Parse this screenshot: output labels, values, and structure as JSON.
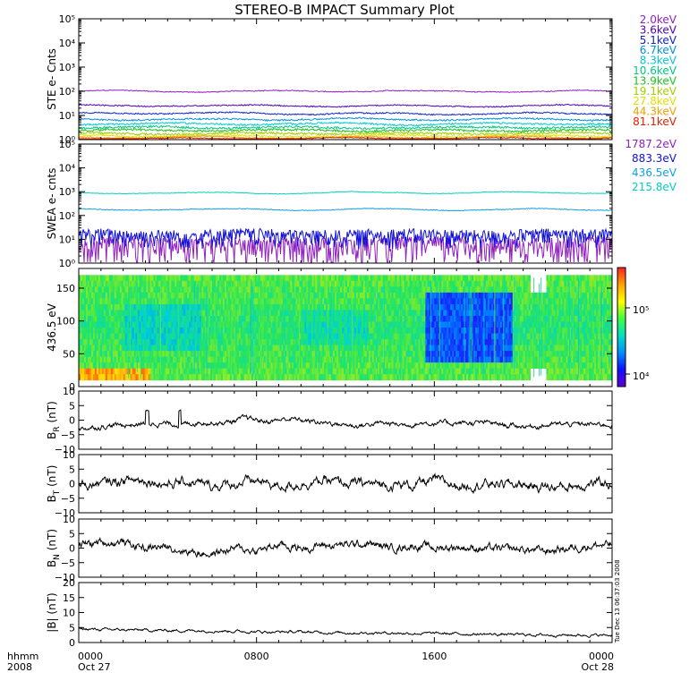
{
  "title": "STEREO-B IMPACT Summary Plot",
  "time_axis": {
    "row_label_1": "hhmm",
    "row_label_2": "2008",
    "ticks": [
      {
        "t": 0,
        "label": "0000",
        "date": "Oct 27"
      },
      {
        "t": 8,
        "label": "0800",
        "date": ""
      },
      {
        "t": 16,
        "label": "1600",
        "date": ""
      },
      {
        "t": 24,
        "label": "0000",
        "date": "Oct 28"
      }
    ]
  },
  "timestamp": "Tue Dec 13 06:37:03 2008",
  "colorbar": {
    "labels": [
      "10⁵",
      "10⁴"
    ],
    "colors": [
      "#ff2020",
      "#ffa000",
      "#ffff00",
      "#40ff40",
      "#00e0c0",
      "#0090ff",
      "#1010ff",
      "#6000d0"
    ]
  },
  "chart_data": [
    {
      "type": "line",
      "panel": "ste",
      "ylabel": "STE e- Cnts",
      "yscale": "log",
      "ylim": [
        1,
        100000
      ],
      "ytick_labels": [
        "10⁰",
        "10¹",
        "10²",
        "10³",
        "10⁴",
        "10⁵"
      ],
      "series": [
        {
          "name": "2.0keV",
          "color": "#9020c0",
          "level": 100,
          "noise": 0.04
        },
        {
          "name": "3.6keV",
          "color": "#5000b8",
          "level": 25,
          "noise": 0.05
        },
        {
          "name": "5.1keV",
          "color": "#1020d0",
          "level": 12,
          "noise": 0.06
        },
        {
          "name": "6.7keV",
          "color": "#0090e0",
          "level": 7,
          "noise": 0.07
        },
        {
          "name": "8.3keV",
          "color": "#00c8d8",
          "level": 4.5,
          "noise": 0.08
        },
        {
          "name": "10.6keV",
          "color": "#00c880",
          "level": 3.2,
          "noise": 0.1
        },
        {
          "name": "13.9keV",
          "color": "#20c020",
          "level": 2.4,
          "noise": 0.1
        },
        {
          "name": "19.1keV",
          "color": "#a0d000",
          "level": 1.8,
          "noise": 0.1
        },
        {
          "name": "27.8keV",
          "color": "#e0e000",
          "level": 1.45,
          "noise": 0.08
        },
        {
          "name": "44.3keV",
          "color": "#f0a000",
          "level": 1.25,
          "noise": 0.06
        },
        {
          "name": "81.1keV",
          "color": "#e02000",
          "level": 1.1,
          "noise": 0.04
        }
      ]
    },
    {
      "type": "line",
      "panel": "swea",
      "ylabel": "SWEA e- cnts",
      "yscale": "log",
      "ylim": [
        1,
        100000
      ],
      "ytick_labels": [
        "10⁰",
        "10¹",
        "10²",
        "10³",
        "10⁴",
        "10⁵"
      ],
      "series": [
        {
          "name": "1787.2eV",
          "color": "#9020c0",
          "level": 6,
          "noise": 0.35
        },
        {
          "name": "883.3eV",
          "color": "#1010d8",
          "level": 15,
          "noise": 0.25
        },
        {
          "name": "436.5eV",
          "color": "#10a0e0",
          "level": 180,
          "noise": 0.03
        },
        {
          "name": "215.8eV",
          "color": "#00d0c0",
          "level": 900,
          "noise": 0.025
        }
      ]
    },
    {
      "type": "heatmap",
      "panel": "pad",
      "ylabel": "436.5 eV",
      "ylim": [
        0,
        180
      ],
      "ytick_labels": [
        "0",
        "50",
        "100",
        "150"
      ],
      "ytick_values": [
        0,
        50,
        100,
        150
      ]
    },
    {
      "type": "line",
      "panel": "br",
      "ylabel": "B_R (nT)",
      "ylabel_main": "B",
      "ylabel_sub": "R",
      "ylabel_unit": " (nT)",
      "ylim": [
        -10,
        10
      ],
      "ytick_labels": [
        "−10",
        "−5",
        "0",
        "5",
        "10"
      ],
      "ytick_values": [
        -10,
        -5,
        0,
        5,
        10
      ],
      "anchors": [
        [
          0,
          -3
        ],
        [
          1.2,
          -2
        ],
        [
          2.5,
          -1.5
        ],
        [
          3.5,
          -1
        ],
        [
          4.5,
          -1.5
        ],
        [
          5.5,
          -0.5
        ],
        [
          6.5,
          -1
        ],
        [
          7.5,
          0.5
        ],
        [
          8.5,
          -0.5
        ],
        [
          9.5,
          0.5
        ],
        [
          10.5,
          -0.5
        ],
        [
          11.5,
          -1
        ],
        [
          12.5,
          -2
        ],
        [
          13.5,
          -1
        ],
        [
          14.5,
          -1.5
        ],
        [
          15.5,
          -1
        ],
        [
          16.5,
          -1
        ],
        [
          17.5,
          -1
        ],
        [
          18.5,
          -1
        ],
        [
          19.5,
          -2
        ],
        [
          20.5,
          -2
        ],
        [
          21.5,
          -1.5
        ],
        [
          22.5,
          -1.5
        ],
        [
          23.5,
          -1.5
        ],
        [
          24,
          -1.5
        ]
      ],
      "noise": 0.7
    },
    {
      "type": "line",
      "panel": "bt",
      "ylabel": "B_T (nT)",
      "ylabel_main": "B",
      "ylabel_sub": "T",
      "ylabel_unit": " (nT)",
      "ylim": [
        -10,
        10
      ],
      "ytick_labels": [
        "−10",
        "−5",
        "0",
        "5",
        "10"
      ],
      "ytick_values": [
        -10,
        -5,
        0,
        5,
        10
      ],
      "anchors": [
        [
          0,
          -0.5
        ],
        [
          1,
          0
        ],
        [
          2,
          1
        ],
        [
          3,
          1.5
        ],
        [
          4,
          0
        ],
        [
          5,
          0.5
        ],
        [
          6,
          -1
        ],
        [
          7,
          0
        ],
        [
          8,
          1
        ],
        [
          9,
          -1
        ],
        [
          10,
          0
        ],
        [
          11,
          1
        ],
        [
          12,
          0
        ],
        [
          13,
          0
        ],
        [
          14,
          -0.5
        ],
        [
          15,
          -0.5
        ],
        [
          16,
          1
        ],
        [
          17,
          -0.5
        ],
        [
          18,
          0
        ],
        [
          19,
          0
        ],
        [
          20,
          -0.5
        ],
        [
          21,
          -1
        ],
        [
          22,
          -1
        ],
        [
          23,
          0
        ],
        [
          24,
          0
        ]
      ],
      "noise": 1.3
    },
    {
      "type": "line",
      "panel": "bn",
      "ylabel": "B_N (nT)",
      "ylabel_main": "B",
      "ylabel_sub": "N",
      "ylabel_unit": " (nT)",
      "ylim": [
        -10,
        10
      ],
      "ytick_labels": [
        "−10",
        "−5",
        "0",
        "5",
        "10"
      ],
      "ytick_values": [
        -10,
        -5,
        0,
        5,
        10
      ],
      "anchors": [
        [
          0,
          1
        ],
        [
          1,
          2
        ],
        [
          2,
          2
        ],
        [
          3,
          0
        ],
        [
          4,
          0.5
        ],
        [
          5,
          -1
        ],
        [
          6,
          -2
        ],
        [
          7,
          0
        ],
        [
          8,
          -1
        ],
        [
          9,
          1
        ],
        [
          10,
          0
        ],
        [
          11,
          1
        ],
        [
          12,
          1
        ],
        [
          13,
          1.5
        ],
        [
          14,
          0
        ],
        [
          15,
          1
        ],
        [
          16,
          0
        ],
        [
          17,
          0.5
        ],
        [
          18,
          0
        ],
        [
          19,
          -0.5
        ],
        [
          20,
          -0.5
        ],
        [
          21,
          -1
        ],
        [
          22,
          0
        ],
        [
          23,
          1
        ],
        [
          24,
          1
        ]
      ],
      "noise": 1.1
    },
    {
      "type": "line",
      "panel": "bmag",
      "ylabel": "|B| (nT)",
      "ylim": [
        0,
        20
      ],
      "ytick_labels": [
        "0",
        "5",
        "10",
        "15",
        "20"
      ],
      "ytick_values": [
        0,
        5,
        10,
        15,
        20
      ],
      "anchors": [
        [
          0,
          4.5
        ],
        [
          2,
          4.2
        ],
        [
          4,
          4
        ],
        [
          6,
          4
        ],
        [
          8,
          3.6
        ],
        [
          10,
          3.5
        ],
        [
          12,
          3.3
        ],
        [
          14,
          3.2
        ],
        [
          16,
          3
        ],
        [
          18,
          2.8
        ],
        [
          20,
          2.6
        ],
        [
          22,
          2.5
        ],
        [
          24,
          2.4
        ]
      ],
      "noise": 0.35
    }
  ]
}
